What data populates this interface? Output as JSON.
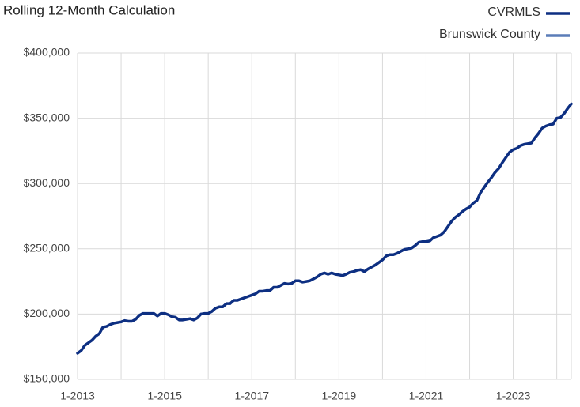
{
  "chart_data": {
    "type": "line",
    "title": "Rolling 12-Month Calculation",
    "categories": [
      "1-2013",
      null,
      null,
      null,
      null,
      null,
      null,
      null,
      null,
      null,
      null,
      null,
      null,
      null,
      null,
      null,
      null,
      null,
      null,
      null,
      null,
      null,
      null,
      null,
      "1-2015",
      null,
      null,
      null,
      null,
      null,
      null,
      null,
      null,
      null,
      null,
      null,
      null,
      null,
      null,
      null,
      null,
      null,
      null,
      null,
      null,
      null,
      null,
      null,
      "1-2017",
      null,
      null,
      null,
      null,
      null,
      null,
      null,
      null,
      null,
      null,
      null,
      null,
      null,
      null,
      null,
      null,
      null,
      null,
      null,
      null,
      null,
      null,
      null,
      "1-2019",
      null,
      null,
      null,
      null,
      null,
      null,
      null,
      null,
      null,
      null,
      null,
      null,
      null,
      null,
      null,
      null,
      null,
      null,
      null,
      null,
      null,
      null,
      null,
      "1-2021",
      null,
      null,
      null,
      null,
      null,
      null,
      null,
      null,
      null,
      null,
      null,
      null,
      null,
      null,
      null,
      null,
      null,
      null,
      null,
      null,
      null,
      null,
      null,
      "1-2023",
      null,
      null,
      null,
      null,
      null,
      null,
      null,
      null,
      null,
      null,
      null,
      null,
      null,
      null,
      null,
      null
    ],
    "series": [
      {
        "name": "CVRMLS",
        "color": "#0d2f82",
        "values": [
          170000,
          172000,
          176000,
          178000,
          180000,
          183000,
          185000,
          190000,
          190500,
          192000,
          193000,
          193500,
          194000,
          195000,
          194500,
          194500,
          196000,
          199000,
          200500,
          200500,
          200500,
          200500,
          198500,
          200500,
          200500,
          199500,
          198000,
          197500,
          195500,
          195500,
          196000,
          196500,
          195500,
          197000,
          200000,
          200500,
          200500,
          202000,
          204500,
          205500,
          205500,
          208000,
          208000,
          210500,
          210500,
          211500,
          212500,
          213500,
          214500,
          215500,
          217500,
          217500,
          218000,
          218000,
          220500,
          220500,
          222000,
          223500,
          223000,
          223500,
          225500,
          225500,
          224500,
          225000,
          225500,
          227000,
          228500,
          230500,
          231500,
          230500,
          231500,
          230500,
          230000,
          229500,
          230500,
          232000,
          232500,
          233500,
          234000,
          232500,
          234500,
          236000,
          237500,
          239500,
          241500,
          244500,
          245500,
          245500,
          246500,
          248000,
          249500,
          250000,
          250500,
          252500,
          255000,
          255500,
          255500,
          256000,
          258500,
          259500,
          260500,
          263000,
          267000,
          271000,
          274000,
          276000,
          278500,
          280500,
          282000,
          285000,
          287000,
          293000,
          297000,
          301000,
          304500,
          308500,
          311500,
          316000,
          320000,
          324000,
          326000,
          327000,
          329000,
          330000,
          330500,
          331000,
          335000,
          338500,
          342500,
          344000,
          345000,
          345500,
          350000,
          350500,
          353500,
          357500,
          361000
        ]
      },
      {
        "name": "Brunswick County",
        "color": "#5b7db8",
        "values": [
          null,
          null,
          null,
          null,
          null,
          null,
          null,
          null,
          null,
          null,
          null,
          null,
          null,
          null,
          null,
          null,
          null,
          null,
          null,
          null,
          null,
          null,
          null,
          null,
          null,
          null,
          null,
          null,
          null,
          null,
          null,
          null,
          null,
          null,
          null,
          null,
          null,
          null,
          null,
          null,
          null,
          null,
          null,
          null,
          null,
          null,
          null,
          null,
          null,
          null,
          null,
          null,
          null,
          null,
          null,
          null,
          null,
          null,
          null,
          null,
          null,
          null,
          null,
          null,
          null,
          null,
          null,
          null,
          null,
          null,
          null,
          null,
          null,
          null,
          null,
          null,
          null,
          null,
          null,
          null,
          null,
          null,
          null,
          null,
          null,
          null,
          null,
          null,
          null,
          null,
          null,
          null,
          null,
          null,
          null,
          null,
          null,
          null,
          null,
          null,
          null,
          null,
          null,
          null,
          null,
          null,
          null,
          null,
          null,
          null,
          null,
          null,
          null,
          null,
          null,
          null,
          null,
          null,
          null,
          null,
          null,
          null,
          null,
          null,
          null,
          null,
          null,
          null,
          null,
          null,
          null,
          null,
          null,
          null,
          null,
          null,
          null
        ]
      }
    ],
    "ylim": [
      150000,
      400000
    ],
    "yticks": [
      {
        "value": 150000,
        "label": "$150,000"
      },
      {
        "value": 200000,
        "label": "$200,000"
      },
      {
        "value": 250000,
        "label": "$250,000"
      },
      {
        "value": 300000,
        "label": "$300,000"
      },
      {
        "value": 350000,
        "label": "$350,000"
      },
      {
        "value": 400000,
        "label": "$400,000"
      }
    ],
    "grid": true,
    "legend": "top-right"
  }
}
